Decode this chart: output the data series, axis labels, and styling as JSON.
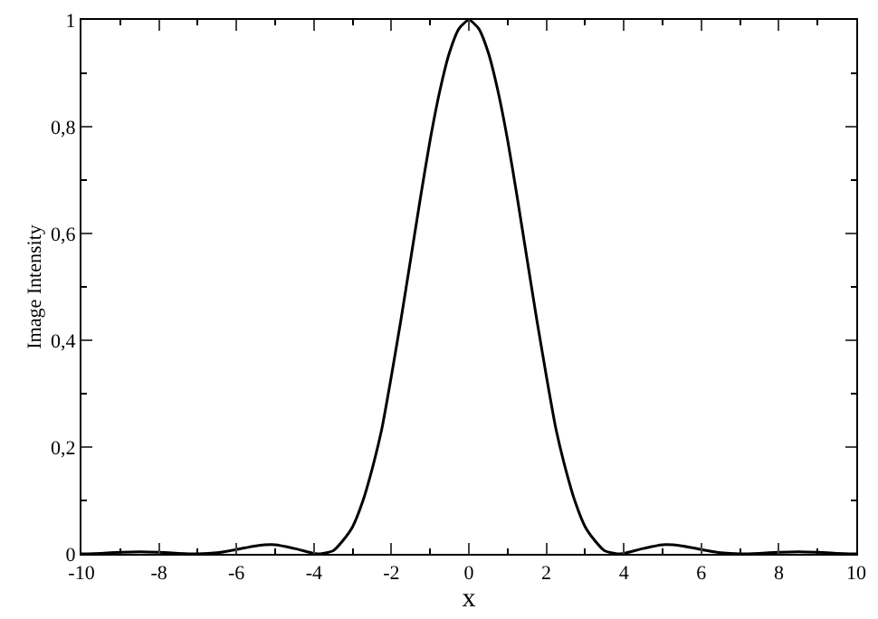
{
  "chart_data": {
    "type": "line",
    "xlabel": "x",
    "ylabel": "Image Intensity",
    "x": [
      -10,
      -9.5,
      -9,
      -8.5,
      -8,
      -7.5,
      -7,
      -6.5,
      -6,
      -5.5,
      -5,
      -4.5,
      -4,
      -3.83,
      -3.5,
      -3.25,
      -3,
      -2.75,
      -2.5,
      -2.25,
      -2,
      -1.75,
      -1.5,
      -1.25,
      -1,
      -0.75,
      -0.5,
      -0.25,
      0,
      0.25,
      0.5,
      0.75,
      1,
      1.25,
      1.5,
      1.75,
      2,
      2.25,
      2.5,
      2.75,
      3,
      3.25,
      3.5,
      3.83,
      4,
      4.5,
      5,
      5.5,
      6,
      6.5,
      7,
      7.5,
      8,
      8.5,
      9,
      9.5,
      10
    ],
    "series": [
      {
        "color": "#000000",
        "values": [
          0,
          0.001,
          0.003,
          0.004,
          0.003,
          0.001,
          0,
          0.002,
          0.008,
          0.015,
          0.017,
          0.01,
          0.001,
          0,
          0.006,
          0.025,
          0.051,
          0.096,
          0.158,
          0.233,
          0.333,
          0.44,
          0.553,
          0.667,
          0.775,
          0.867,
          0.939,
          0.984,
          1,
          0.984,
          0.939,
          0.867,
          0.775,
          0.667,
          0.553,
          0.44,
          0.333,
          0.233,
          0.158,
          0.096,
          0.051,
          0.025,
          0.006,
          0,
          0.001,
          0.01,
          0.017,
          0.015,
          0.008,
          0.002,
          0,
          0.001,
          0.003,
          0.004,
          0.003,
          0.001,
          0
        ]
      }
    ],
    "xlim": [
      -10,
      10
    ],
    "xticks": [
      -10,
      -8,
      -6,
      -4,
      -2,
      0,
      2,
      4,
      6,
      8,
      10
    ],
    "ylim": [
      0,
      1
    ],
    "yticks": [
      {
        "value": 0,
        "label": "0"
      },
      {
        "value": 0.2,
        "label": "0,2"
      },
      {
        "value": 0.4,
        "label": "0,4"
      },
      {
        "value": 0.6,
        "label": "0,6"
      },
      {
        "value": 0.8,
        "label": "0,8"
      },
      {
        "value": 1,
        "label": "1"
      }
    ],
    "marker": "none",
    "line_style": "solid"
  }
}
